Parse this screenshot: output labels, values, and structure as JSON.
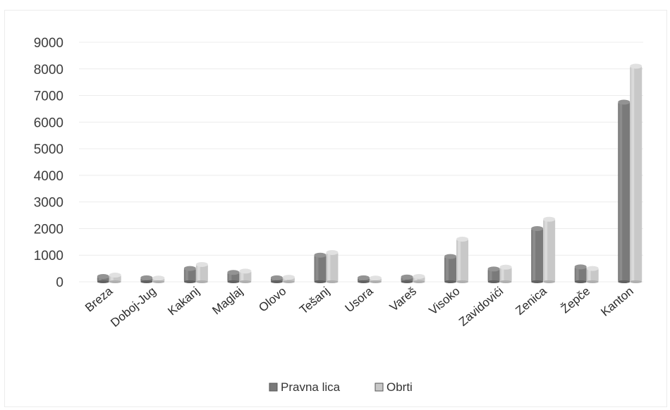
{
  "chart_data": {
    "type": "bar",
    "title": "",
    "xlabel": "",
    "ylabel": "",
    "ylim": [
      0,
      9000
    ],
    "yticks": [
      0,
      1000,
      2000,
      3000,
      4000,
      5000,
      6000,
      7000,
      8000,
      9000
    ],
    "grid": true,
    "legend_position": "bottom",
    "categories": [
      "Breza",
      "Doboj-Jug",
      "Kakanj",
      "Maglaj",
      "Olovo",
      "Tešanj",
      "Usora",
      "Vareš",
      "Visoko",
      "Zavidovići",
      "Zenica",
      "Žepče",
      "Kanton"
    ],
    "series": [
      {
        "name": "Pravna lica",
        "color": "#7a7a7a",
        "values": [
          200,
          150,
          500,
          350,
          150,
          1000,
          150,
          180,
          950,
          480,
          2000,
          560,
          6750
        ]
      },
      {
        "name": "Obrti",
        "color": "#c8c8c8",
        "values": [
          250,
          140,
          650,
          400,
          170,
          1100,
          140,
          200,
          1600,
          550,
          2350,
          500,
          8100
        ]
      }
    ]
  }
}
